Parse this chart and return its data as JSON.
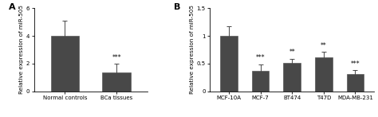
{
  "panel_A": {
    "categories": [
      "Normal controls",
      "BCa tissues"
    ],
    "values": [
      4.0,
      1.35
    ],
    "errors": [
      1.1,
      0.65
    ],
    "bar_color": "#484848",
    "ylabel": "Relative expression of miR-505",
    "ylim": [
      0,
      6
    ],
    "yticks": [
      0,
      2,
      4,
      6
    ],
    "significance": [
      "",
      "***"
    ],
    "label": "A"
  },
  "panel_B": {
    "categories": [
      "MCF-10A",
      "MCF-7",
      "BT474",
      "T47D",
      "MDA-MB-231"
    ],
    "values": [
      1.0,
      0.37,
      0.51,
      0.61,
      0.31
    ],
    "errors": [
      0.18,
      0.12,
      0.08,
      0.1,
      0.07
    ],
    "bar_color": "#484848",
    "ylabel": "Relative expression of miR-505",
    "ylim": [
      0,
      1.5
    ],
    "yticks": [
      0.0,
      0.5,
      1.0,
      1.5
    ],
    "significance": [
      "",
      "***",
      "**",
      "**",
      "***"
    ],
    "label": "B"
  },
  "bar_width": 0.55,
  "tick_fontsize": 5.0,
  "ylabel_fontsize": 5.2,
  "sig_fontsize": 5.5,
  "label_fontsize": 8,
  "background_color": "#ffffff",
  "error_capsize": 2,
  "error_color": "#484848",
  "error_linewidth": 0.7,
  "spine_linewidth": 0.6
}
